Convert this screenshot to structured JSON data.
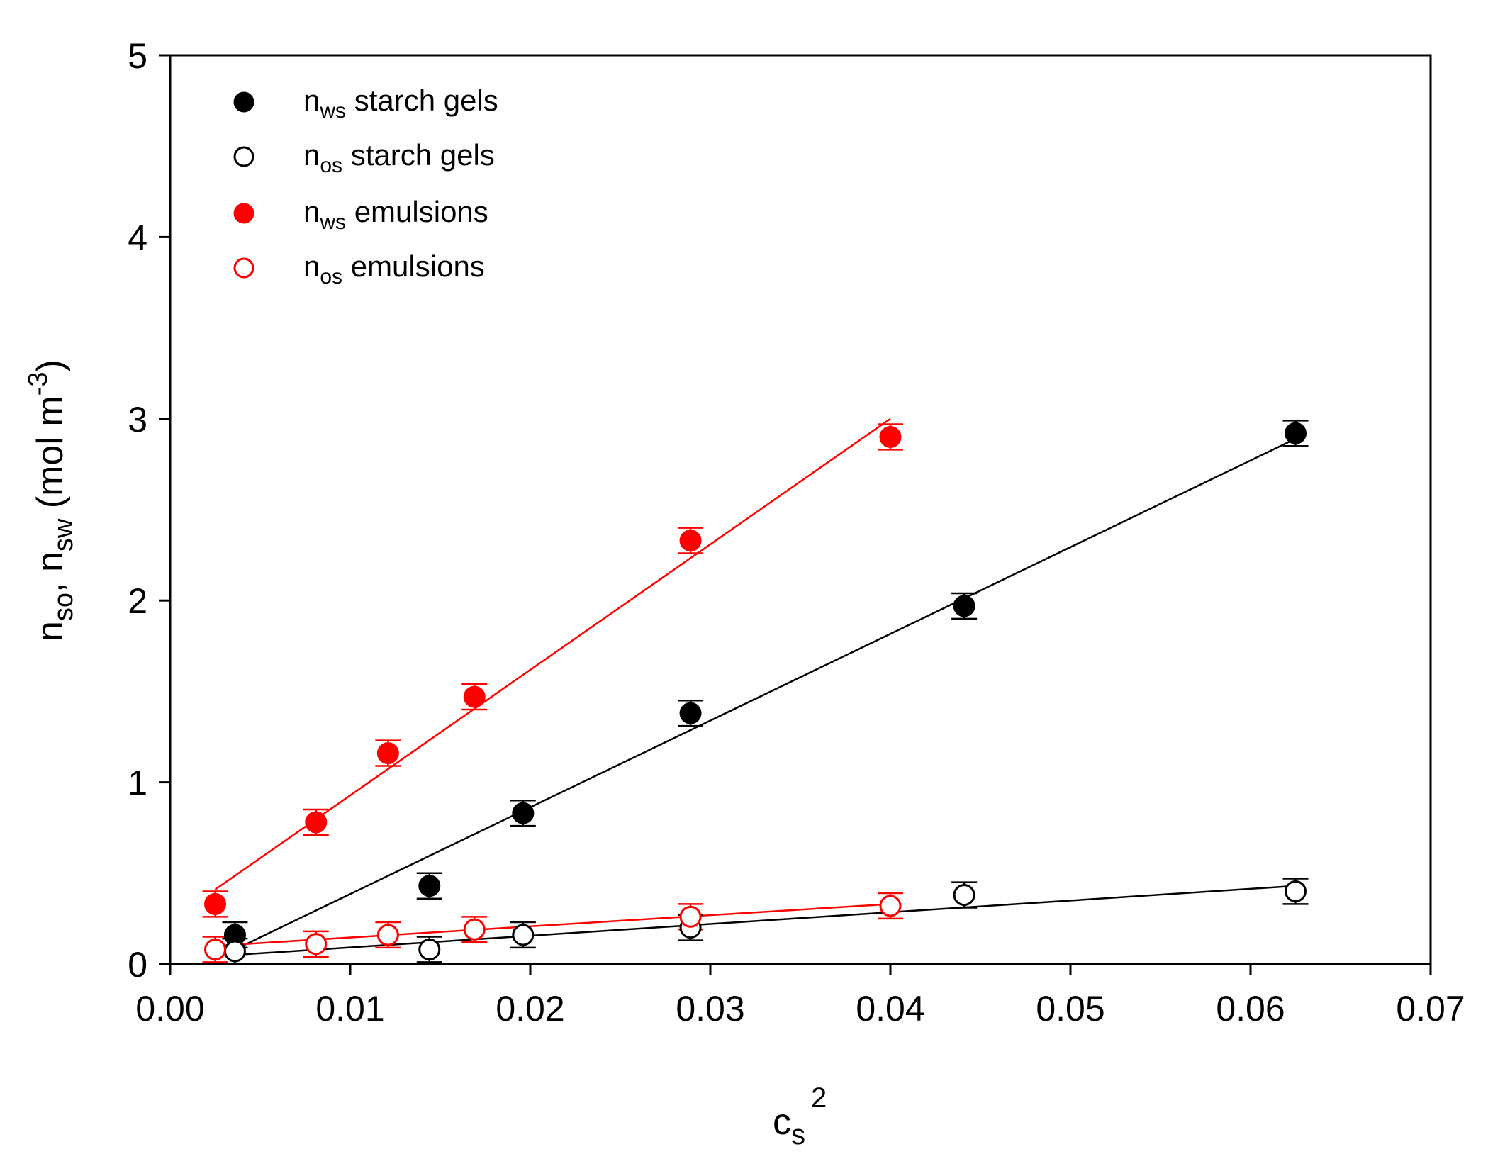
{
  "chart_data": {
    "type": "scatter",
    "xlabel": {
      "main": "c",
      "sub": "s",
      "sup": "2"
    },
    "ylabel": {
      "p1": "n",
      "s1": "so",
      "p2": ", n",
      "s2": "sw",
      "p3": " (mol m",
      "sup": "-3",
      "p4": ")"
    },
    "xlim": [
      0,
      0.07
    ],
    "ylim": [
      0,
      5
    ],
    "xticks": [
      0,
      0.01,
      0.02,
      0.03,
      0.04,
      0.05,
      0.06,
      0.07
    ],
    "xtick_labels": [
      "0.00",
      "0.01",
      "0.02",
      "0.03",
      "0.04",
      "0.05",
      "0.06",
      "0.07"
    ],
    "yticks": [
      0,
      1,
      2,
      3,
      4,
      5
    ],
    "ytick_labels": [
      "0",
      "1",
      "2",
      "3",
      "4",
      "5"
    ],
    "grid": false,
    "legend_position": "top-left",
    "series": [
      {
        "name": "n_ws starch gels",
        "label_main": "n",
        "label_sub": "ws",
        "label_rest": " starch gels",
        "color": "#000000",
        "filled": true,
        "x": [
          0.0036,
          0.0144,
          0.0196,
          0.0289,
          0.0441,
          0.0625
        ],
        "y": [
          0.16,
          0.43,
          0.83,
          1.38,
          1.97,
          2.92
        ],
        "err": [
          0.07,
          0.07,
          0.07,
          0.07,
          0.07,
          0.07
        ],
        "fit": {
          "x": [
            0.0036,
            0.0625
          ],
          "y": [
            0.08,
            2.89
          ]
        }
      },
      {
        "name": "n_os starch gels",
        "label_main": "n",
        "label_sub": "os",
        "label_rest": " starch gels",
        "color": "#000000",
        "filled": false,
        "x": [
          0.0036,
          0.0144,
          0.0196,
          0.0289,
          0.0441,
          0.0625
        ],
        "y": [
          0.07,
          0.08,
          0.16,
          0.2,
          0.38,
          0.4
        ],
        "err": [
          0.07,
          0.07,
          0.07,
          0.07,
          0.07,
          0.07
        ],
        "fit": {
          "x": [
            0.0036,
            0.0625
          ],
          "y": [
            0.05,
            0.43
          ]
        }
      },
      {
        "name": "n_ws emulsions",
        "label_main": "n",
        "label_sub": "ws",
        "label_rest": " emulsions",
        "color": "#ff0000",
        "filled": true,
        "x": [
          0.0025,
          0.0081,
          0.0121,
          0.0169,
          0.0289,
          0.04
        ],
        "y": [
          0.33,
          0.78,
          1.16,
          1.47,
          2.33,
          2.9
        ],
        "err": [
          0.07,
          0.07,
          0.07,
          0.07,
          0.07,
          0.07
        ],
        "fit": {
          "x": [
            0.0025,
            0.04
          ],
          "y": [
            0.41,
            3.0
          ]
        }
      },
      {
        "name": "n_os emulsions",
        "label_main": "n",
        "label_sub": "os",
        "label_rest": " emulsions",
        "color": "#ff0000",
        "filled": false,
        "x": [
          0.0025,
          0.0081,
          0.0121,
          0.0169,
          0.0289,
          0.04
        ],
        "y": [
          0.08,
          0.11,
          0.16,
          0.19,
          0.26,
          0.32
        ],
        "err": [
          0.07,
          0.07,
          0.07,
          0.07,
          0.07,
          0.07
        ],
        "fit": {
          "x": [
            0.0025,
            0.04
          ],
          "y": [
            0.1,
            0.33
          ]
        }
      }
    ]
  }
}
